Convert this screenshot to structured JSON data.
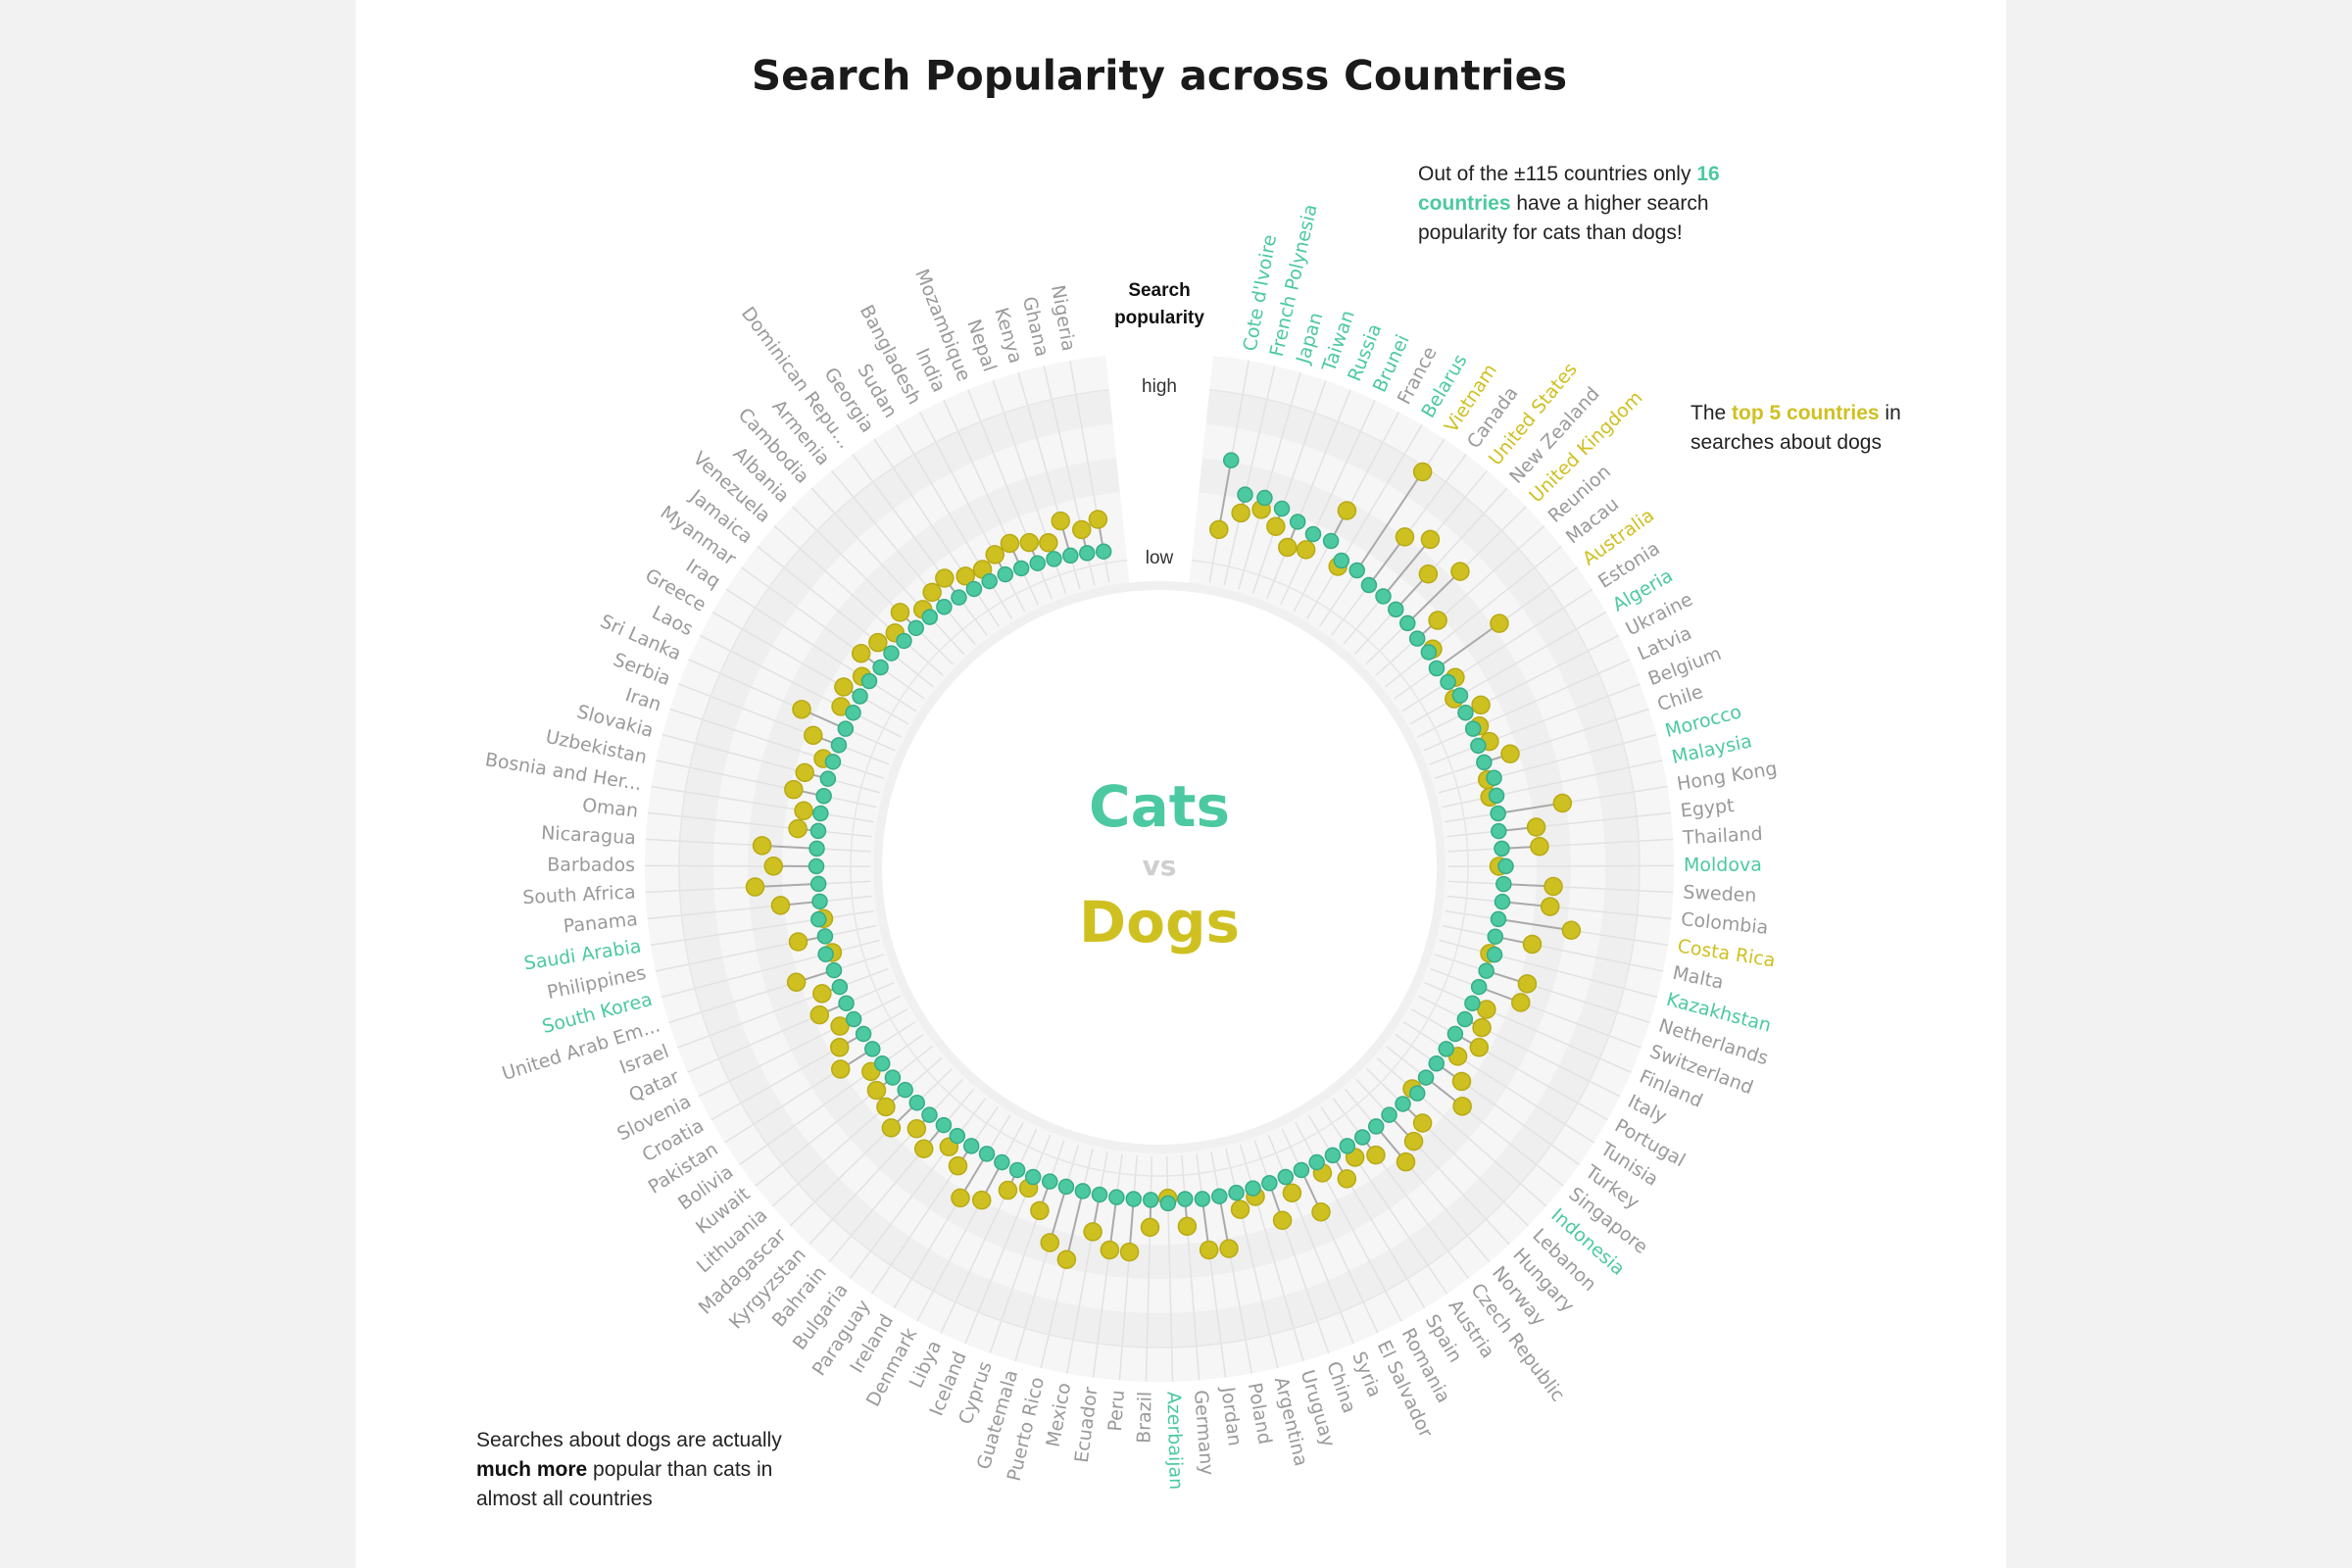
{
  "chart_data": {
    "type": "radial_lollipop",
    "title": "Search Popularity across Countries",
    "axis_title": "Search popularity",
    "center_separator": "vs",
    "ylim": [
      0,
      100
    ],
    "yticks": [
      {
        "value": 0,
        "label": "low"
      },
      {
        "value": 100,
        "label": "high"
      }
    ],
    "categories": [
      "Cote d'Ivoire",
      "French Polynesia",
      "Japan",
      "Taiwan",
      "Russia",
      "Brunei",
      "France",
      "Belarus",
      "Vietnam",
      "Canada",
      "United States",
      "New Zealand",
      "United Kingdom",
      "Reunion",
      "Macau",
      "Australia",
      "Estonia",
      "Algeria",
      "Ukraine",
      "Latvia",
      "Belgium",
      "Chile",
      "Morocco",
      "Malaysia",
      "Hong Kong",
      "Egypt",
      "Thailand",
      "Moldova",
      "Sweden",
      "Colombia",
      "Costa Rica",
      "Malta",
      "Kazakhstan",
      "Netherlands",
      "Switzerland",
      "Finland",
      "Italy",
      "Portugal",
      "Tunisia",
      "Turkey",
      "Singapore",
      "Indonesia",
      "Lebanon",
      "Hungary",
      "Norway",
      "Czech Republic",
      "Austria",
      "Spain",
      "Romania",
      "El Salvador",
      "Syria",
      "China",
      "Uruguay",
      "Argentina",
      "Poland",
      "Jordan",
      "Germany",
      "Azerbaijan",
      "Brazil",
      "Peru",
      "Ecuador",
      "Mexico",
      "Puerto Rico",
      "Guatemala",
      "Cyprus",
      "Iceland",
      "Libya",
      "Denmark",
      "Ireland",
      "Paraguay",
      "Bulgaria",
      "Bahrain",
      "Kyrgyzstan",
      "Madagascar",
      "Lithuania",
      "Kuwait",
      "Bolivia",
      "Pakistan",
      "Croatia",
      "Slovenia",
      "Qatar",
      "Israel",
      "United Arab Em...",
      "South Korea",
      "Philippines",
      "Saudi Arabia",
      "Panama",
      "South Africa",
      "Barbados",
      "Nicaragua",
      "Oman",
      "Bosnia and Her...",
      "Uzbekistan",
      "Slovakia",
      "Iran",
      "Serbia",
      "Sri Lanka",
      "Laos",
      "Greece",
      "Iraq",
      "Myanmar",
      "Jamaica",
      "Venezuela",
      "Albania",
      "Cambodia",
      "Armenia",
      "Dominican Repu...",
      "Georgia",
      "Sudan",
      "Bangladesh",
      "India",
      "Mozambique",
      "Nepal",
      "Kenya",
      "Ghana",
      "Nigeria"
    ],
    "series": [
      {
        "name": "Cats",
        "color": "#4cc9a0",
        "values": [
          61,
          43,
          44,
          41,
          37,
          34,
          35,
          28,
          28,
          25,
          25,
          24,
          23,
          21,
          21,
          19,
          20,
          22,
          20,
          20,
          19,
          19,
          22,
          21,
          20,
          19,
          20,
          22,
          21,
          21,
          20,
          20,
          22,
          20,
          19,
          19,
          19,
          18,
          18,
          18,
          18,
          20,
          18,
          17,
          17,
          17,
          16,
          16,
          15,
          15,
          15,
          15,
          15,
          15,
          15,
          15,
          14,
          16,
          14,
          14,
          14,
          14,
          14,
          14,
          14,
          15,
          15,
          15,
          15,
          16,
          16,
          16,
          17,
          17,
          17,
          18,
          18,
          18,
          18,
          19,
          19,
          19,
          19,
          21,
          19,
          21,
          19,
          19,
          20,
          20,
          20,
          20,
          20,
          20,
          20,
          20,
          20,
          20,
          21,
          21,
          20,
          20,
          19,
          19,
          18,
          17,
          16,
          15,
          14,
          13,
          12,
          11,
          10,
          9,
          8,
          7
        ]
      },
      {
        "name": "Dogs",
        "color": "#cfc021",
        "values": [
          20,
          32,
          37,
          30,
          21,
          24,
          55,
          24,
          97,
          60,
          68,
          52,
          66,
          37,
          24,
          64,
          25,
          18,
          30,
          24,
          26,
          35,
          18,
          17,
          58,
          41,
          42,
          18,
          50,
          49,
          63,
          42,
          19,
          45,
          45,
          28,
          30,
          34,
          26,
          36,
          45,
          16,
          34,
          38,
          44,
          30,
          24,
          32,
          22,
          42,
          25,
          38,
          20,
          25,
          46,
          45,
          30,
          13,
          30,
          45,
          45,
          36,
          55,
          48,
          32,
          22,
          28,
          40,
          45,
          30,
          24,
          34,
          28,
          38,
          32,
          30,
          26,
          40,
          34,
          28,
          36,
          30,
          42,
          17,
          35,
          18,
          42,
          56,
          45,
          52,
          32,
          30,
          38,
          34,
          26,
          36,
          48,
          28,
          32,
          26,
          34,
          30,
          26,
          32,
          24,
          28,
          30,
          24,
          22,
          26,
          28,
          24,
          20,
          30,
          22,
          26
        ]
      }
    ],
    "annotations": [
      {
        "parts": [
          "Out of the ±115 countries only ",
          "16 countries",
          " have a higher search popularity for cats than dogs!"
        ]
      },
      {
        "parts": [
          "The ",
          "top 5 countries",
          " in searches about dogs"
        ]
      },
      {
        "parts": [
          "Searches about dogs are actually ",
          "much more",
          " popular than cats in almost all countries"
        ]
      }
    ]
  }
}
